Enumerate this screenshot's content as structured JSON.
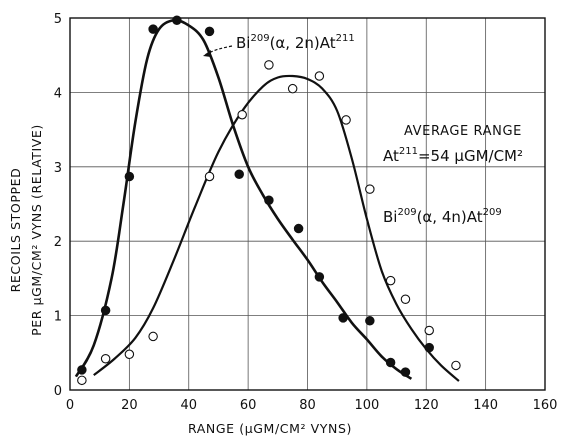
{
  "chart_data": {
    "type": "scatter",
    "xlabel": "RANGE  (μGM/CM² VYNS)",
    "ylabel_line1": "RECOILS STOPPED",
    "ylabel_line2": "PER μGM/CM² VYNS (RELATIVE)",
    "xlim": [
      0,
      160
    ],
    "ylim": [
      0,
      5
    ],
    "xticks": [
      0,
      20,
      40,
      60,
      80,
      100,
      120,
      140,
      160
    ],
    "yticks": [
      0,
      1,
      2,
      3,
      4,
      5
    ],
    "grid": true,
    "series": [
      {
        "name": "Bi209(α, 2n)At211",
        "marker": "filled-circle",
        "points": [
          [
            4,
            0.27
          ],
          [
            12,
            1.07
          ],
          [
            20,
            2.87
          ],
          [
            28,
            4.85
          ],
          [
            36,
            4.97
          ],
          [
            47,
            4.82
          ],
          [
            57,
            2.9
          ],
          [
            67,
            2.55
          ],
          [
            77,
            2.17
          ],
          [
            84,
            1.52
          ],
          [
            92,
            0.97
          ],
          [
            101,
            0.93
          ],
          [
            108,
            0.37
          ],
          [
            113,
            0.24
          ],
          [
            121,
            0.57
          ]
        ],
        "curve": [
          [
            2,
            0.18
          ],
          [
            8,
            0.6
          ],
          [
            14,
            1.5
          ],
          [
            18,
            2.5
          ],
          [
            22,
            3.6
          ],
          [
            26,
            4.45
          ],
          [
            30,
            4.85
          ],
          [
            35,
            4.97
          ],
          [
            40,
            4.9
          ],
          [
            45,
            4.7
          ],
          [
            50,
            4.2
          ],
          [
            55,
            3.55
          ],
          [
            60,
            3.0
          ],
          [
            65,
            2.62
          ],
          [
            70,
            2.3
          ],
          [
            75,
            2.02
          ],
          [
            80,
            1.75
          ],
          [
            85,
            1.45
          ],
          [
            90,
            1.18
          ],
          [
            95,
            0.9
          ],
          [
            100,
            0.68
          ],
          [
            105,
            0.45
          ],
          [
            110,
            0.28
          ],
          [
            115,
            0.15
          ]
        ]
      },
      {
        "name": "Bi209(α, 4n)At209",
        "marker": "open-circle",
        "points": [
          [
            4,
            0.13
          ],
          [
            12,
            0.42
          ],
          [
            20,
            0.48
          ],
          [
            28,
            0.72
          ],
          [
            47,
            2.87
          ],
          [
            58,
            3.7
          ],
          [
            67,
            4.37
          ],
          [
            75,
            4.05
          ],
          [
            84,
            4.22
          ],
          [
            93,
            3.63
          ],
          [
            101,
            2.7
          ],
          [
            108,
            1.47
          ],
          [
            113,
            1.22
          ],
          [
            121,
            0.8
          ],
          [
            130,
            0.33
          ]
        ],
        "curve": [
          [
            8,
            0.2
          ],
          [
            15,
            0.42
          ],
          [
            22,
            0.7
          ],
          [
            28,
            1.1
          ],
          [
            35,
            1.75
          ],
          [
            42,
            2.45
          ],
          [
            50,
            3.2
          ],
          [
            58,
            3.75
          ],
          [
            65,
            4.08
          ],
          [
            70,
            4.2
          ],
          [
            75,
            4.22
          ],
          [
            80,
            4.18
          ],
          [
            85,
            4.05
          ],
          [
            90,
            3.75
          ],
          [
            95,
            3.1
          ],
          [
            100,
            2.3
          ],
          [
            105,
            1.6
          ],
          [
            110,
            1.15
          ],
          [
            115,
            0.82
          ],
          [
            120,
            0.55
          ],
          [
            125,
            0.33
          ],
          [
            131,
            0.12
          ]
        ]
      }
    ],
    "annotations": {
      "series1_label": {
        "base": "Bi",
        "sup1": "209",
        "mid": "(α, 2n)At",
        "sup2": "211"
      },
      "series2_label": {
        "base": "Bi",
        "sup1": "209",
        "mid": "(α, 4n)At",
        "sup2": "209"
      },
      "average_range_title": "AVERAGE RANGE",
      "average_range_value": {
        "base": "At",
        "sup": "211",
        "rest": "=54 μGM/CM²"
      }
    }
  }
}
